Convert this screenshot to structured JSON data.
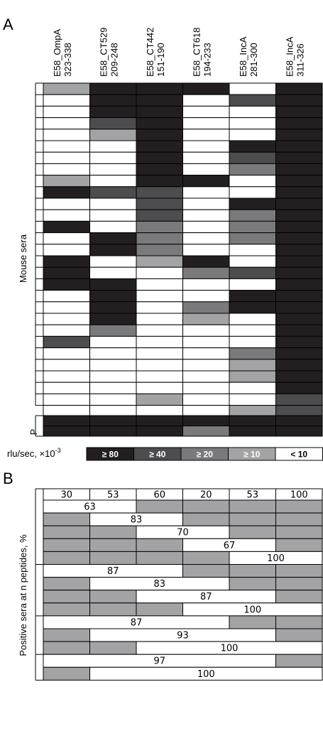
{
  "panel_a": {
    "letter": "A",
    "columns": [
      {
        "line1": "E58_OmpA",
        "line2": "323-338"
      },
      {
        "line1": "E58_CT529",
        "line2": "209-248"
      },
      {
        "line1": "E58_CT442",
        "line2": "151-190"
      },
      {
        "line1": "E58_CT618",
        "line2": "194-233"
      },
      {
        "line1": "E58_IncA",
        "line2": "281-300"
      },
      {
        "line1": "E58_IncA",
        "line2": "311-326"
      }
    ],
    "y_label": "Mouse sera",
    "p_label": "P",
    "legend": {
      "prefix": "rlu/sec, ×10",
      "exp": "-3",
      "items": [
        {
          "label": "≥ 80",
          "color": "#231f20",
          "text_color": "#ffffff"
        },
        {
          "label": "≥ 40",
          "color": "#4d4d4f",
          "text_color": "#ffffff"
        },
        {
          "label": "≥ 20",
          "color": "#7a7a7c",
          "text_color": "#ffffff"
        },
        {
          "label": "≥ 10",
          "color": "#a3a3a5",
          "text_color": "#ffffff"
        },
        {
          "label": "< 10",
          "color": "#ffffff",
          "text_color": "#000000"
        }
      ]
    }
  },
  "panel_b": {
    "letter": "B",
    "y_label": "Positive sera at n peptides, %",
    "header": [
      "30",
      "53",
      "60",
      "20",
      "53",
      "100"
    ],
    "rows": [
      {
        "s": 0,
        "e": 2,
        "label": "63"
      },
      {
        "s": 1,
        "e": 3,
        "label": "83"
      },
      {
        "s": 2,
        "e": 4,
        "label": "70"
      },
      {
        "s": 3,
        "e": 5,
        "label": "67"
      },
      {
        "s": 4,
        "e": 6,
        "label": "100"
      },
      {
        "s": 0,
        "e": 3,
        "label": "87"
      },
      {
        "s": 1,
        "e": 4,
        "label": "83"
      },
      {
        "s": 2,
        "e": 5,
        "label": "87"
      },
      {
        "s": 3,
        "e": 6,
        "label": "100"
      },
      {
        "s": 0,
        "e": 4,
        "label": "87"
      },
      {
        "s": 1,
        "e": 5,
        "label": "93"
      },
      {
        "s": 2,
        "e": 6,
        "label": "100"
      },
      {
        "s": 0,
        "e": 5,
        "label": "97"
      },
      {
        "s": 1,
        "e": 6,
        "label": "100"
      }
    ]
  },
  "chart_data": {
    "type": "heatmap",
    "categories": [
      "E58_OmpA 323-338",
      "E58_CT529 209-248",
      "E58_CT442 151-190",
      "E58_CT618 194-233",
      "E58_IncA 281-300",
      "E58_IncA 311-326"
    ],
    "ylabel": "Mouse sera",
    "value_levels": [
      "≥ 80",
      "≥ 40",
      "≥ 20",
      "≥ 10",
      "< 10"
    ],
    "level_codes": "0 = ≥ 80, 1 = ≥ 40, 2 = ≥ 20, 3 = ≥ 10, 4 = < 10",
    "sera_levels": [
      [
        3,
        0,
        0,
        0,
        4,
        0
      ],
      [
        4,
        0,
        0,
        4,
        1,
        0
      ],
      [
        4,
        0,
        0,
        4,
        4,
        0
      ],
      [
        4,
        1,
        0,
        4,
        4,
        0
      ],
      [
        4,
        3,
        0,
        4,
        4,
        0
      ],
      [
        4,
        4,
        0,
        4,
        0,
        0
      ],
      [
        4,
        4,
        0,
        4,
        1,
        0
      ],
      [
        4,
        4,
        0,
        4,
        2,
        0
      ],
      [
        3,
        4,
        0,
        0,
        4,
        0
      ],
      [
        0,
        1,
        1,
        4,
        4,
        0
      ],
      [
        4,
        4,
        1,
        4,
        0,
        0
      ],
      [
        4,
        4,
        1,
        4,
        2,
        0
      ],
      [
        0,
        4,
        2,
        4,
        2,
        0
      ],
      [
        4,
        0,
        2,
        4,
        2,
        0
      ],
      [
        4,
        0,
        2,
        4,
        4,
        0
      ],
      [
        0,
        4,
        3,
        0,
        4,
        0
      ],
      [
        0,
        4,
        4,
        2,
        1,
        0
      ],
      [
        0,
        0,
        4,
        4,
        4,
        0
      ],
      [
        4,
        0,
        4,
        4,
        0,
        0
      ],
      [
        4,
        0,
        4,
        2,
        0,
        0
      ],
      [
        4,
        0,
        4,
        3,
        4,
        0
      ],
      [
        4,
        2,
        4,
        4,
        4,
        0
      ],
      [
        1,
        4,
        4,
        4,
        4,
        0
      ],
      [
        4,
        4,
        4,
        4,
        2,
        0
      ],
      [
        4,
        4,
        4,
        4,
        3,
        0
      ],
      [
        4,
        4,
        4,
        4,
        3,
        0
      ],
      [
        4,
        4,
        4,
        4,
        4,
        0
      ],
      [
        4,
        4,
        3,
        4,
        4,
        1
      ]
    ],
    "p_levels": [
      [
        4,
        4,
        4,
        4,
        3,
        1
      ],
      [
        0,
        0,
        0,
        0,
        0,
        0
      ],
      [
        0,
        0,
        0,
        2,
        0,
        0
      ]
    ],
    "panel_b_column_percent": [
      30,
      53,
      60,
      20,
      53,
      100
    ],
    "panel_b_combination_percent": [
      63,
      83,
      70,
      67,
      100,
      87,
      83,
      87,
      100,
      87,
      93,
      100,
      97,
      100
    ]
  }
}
